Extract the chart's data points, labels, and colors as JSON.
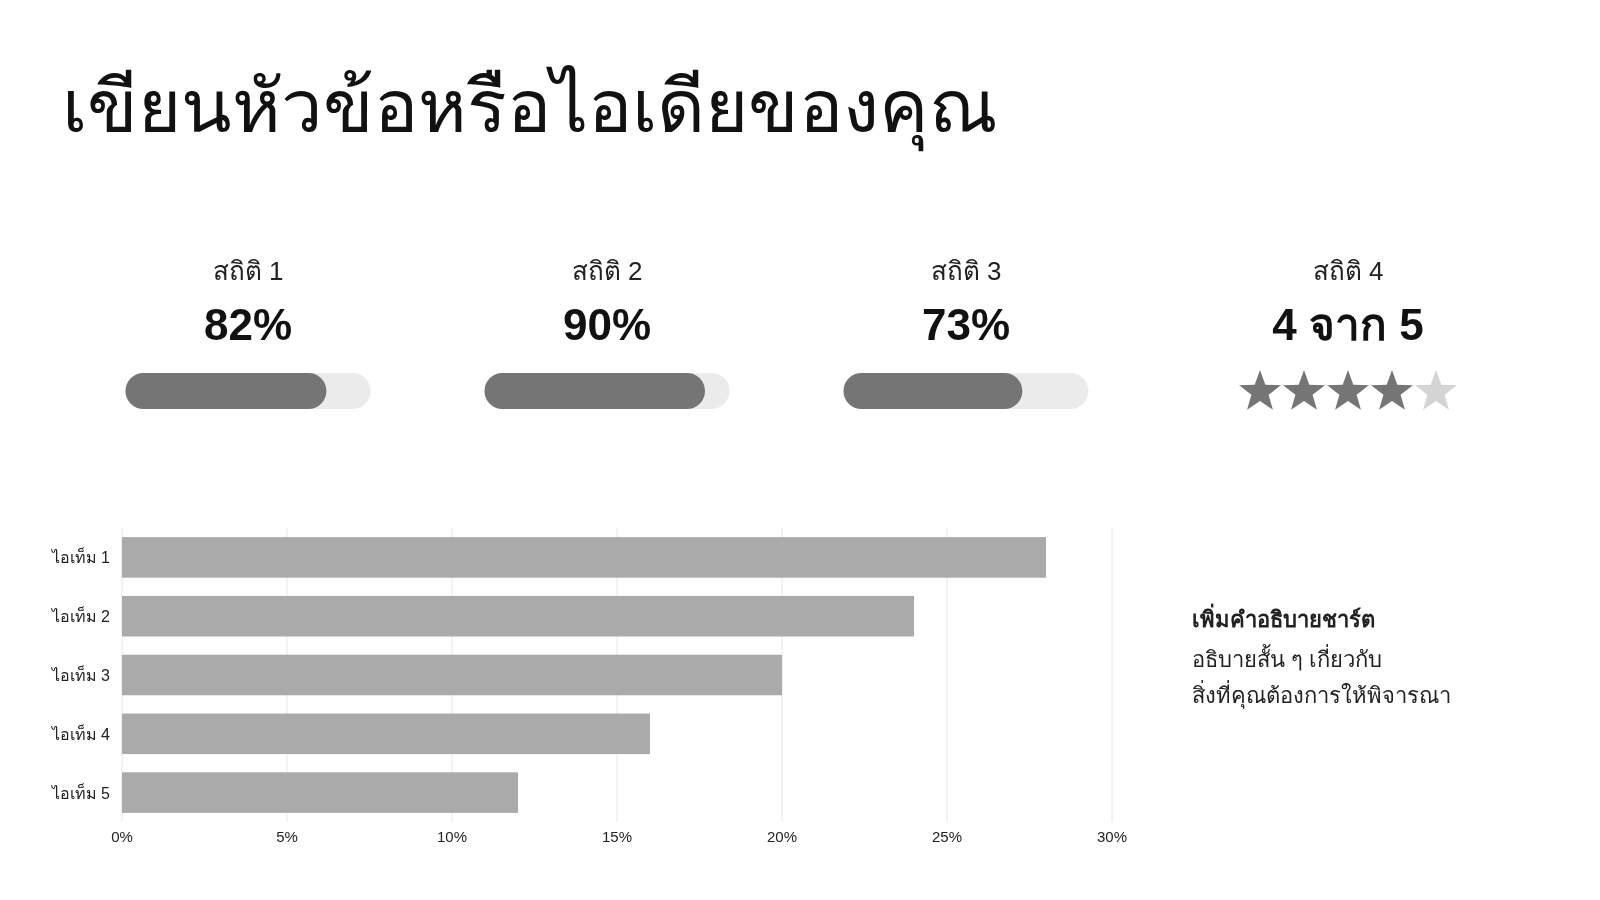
{
  "chart_data": [
    {
      "type": "other",
      "title": "เขียนหัวข้อหรือไอเดียของคุณ",
      "categories": [
        "สถิติ 1",
        "สถิติ 2",
        "สถิติ 3"
      ],
      "values": [
        82,
        90,
        73
      ],
      "value_labels": [
        "82%",
        "90%",
        "73%"
      ],
      "colors": [
        "#757575",
        "#757575",
        "#757575"
      ]
    },
    {
      "type": "other",
      "categories": [
        "สถิติ 4"
      ],
      "values": [
        4
      ],
      "value_labels": [
        "4 จาก 5"
      ],
      "colors": [
        "#757575"
      ]
    },
    {
      "type": "bar",
      "orientation": "horizontal",
      "categories": [
        "ไอเท็ม 1",
        "ไอเท็ม 2",
        "ไอเท็ม 3",
        "ไอเท็ม 4",
        "ไอเท็ม 5"
      ],
      "values": [
        28,
        24,
        20,
        16,
        12
      ],
      "color": "#aaaaaa",
      "xlim": [
        0,
        30
      ],
      "xticks": [
        {
          "value": 0,
          "label": "0%"
        },
        {
          "value": 5,
          "label": "5%"
        },
        {
          "value": 10,
          "label": "10%"
        },
        {
          "value": 15,
          "label": "15%"
        },
        {
          "value": 20,
          "label": "20%"
        },
        {
          "value": 25,
          "label": "25%"
        },
        {
          "value": 30,
          "label": "30%"
        }
      ],
      "grid": "x",
      "annotations": [
        "เพิ่มคำอธิบายชาร์ต",
        "อธิบายสั้น ๆ เกี่ยวกับ\nสิ่งที่คุณต้องการให้พิจารณา"
      ]
    }
  ]
}
